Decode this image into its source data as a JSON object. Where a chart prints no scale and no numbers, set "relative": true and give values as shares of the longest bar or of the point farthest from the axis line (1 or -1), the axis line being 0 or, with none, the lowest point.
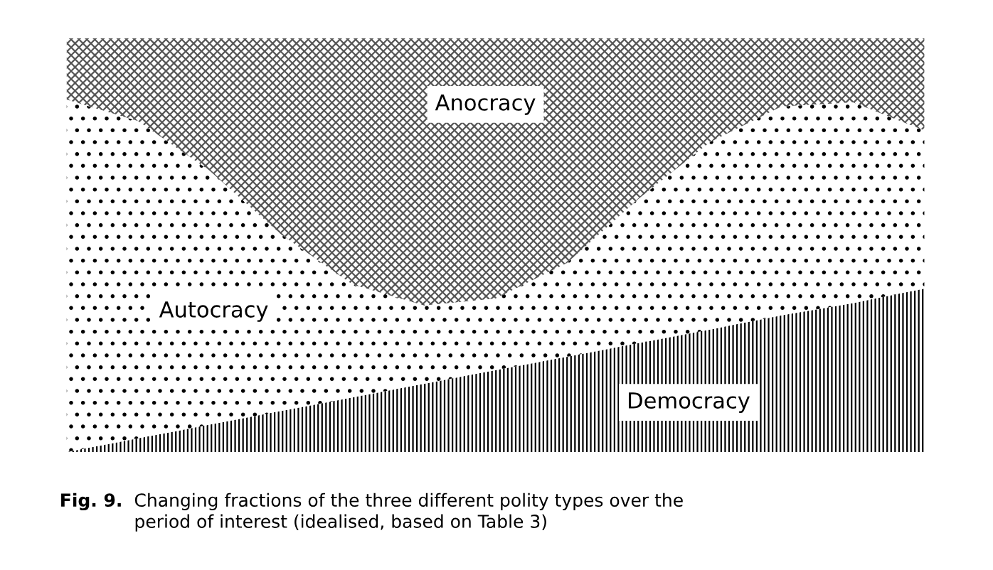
{
  "chart_data": {
    "type": "area",
    "stacked": true,
    "relative": true,
    "categories": [
      null,
      null,
      null,
      null,
      null,
      null,
      null,
      null,
      null,
      null,
      null,
      null,
      null
    ],
    "series": [
      {
        "name": "Democracy",
        "color": "#000000",
        "values": [
          0,
          0.033,
          0.066,
          0.099,
          0.132,
          0.165,
          0.198,
          0.23,
          0.263,
          0.296,
          0.33,
          0.36,
          0.395
        ]
      },
      {
        "name": "Autocracy",
        "color": "#000000",
        "values": [
          0.852,
          0.767,
          0.614,
          0.427,
          0.273,
          0.189,
          0.173,
          0.227,
          0.349,
          0.453,
          0.505,
          0.485,
          0.382
        ]
      },
      {
        "name": "Anocracy",
        "color": "#555555",
        "values": [
          0.148,
          0.2,
          0.32,
          0.474,
          0.595,
          0.646,
          0.629,
          0.543,
          0.388,
          0.251,
          0.165,
          0.155,
          0.223
        ]
      }
    ],
    "annotations": [
      "Fig. 9.",
      "Changing fractions of the three different polity types over the\nperiod of interest (idealised, based on Table 3)"
    ],
    "legend": false
  }
}
